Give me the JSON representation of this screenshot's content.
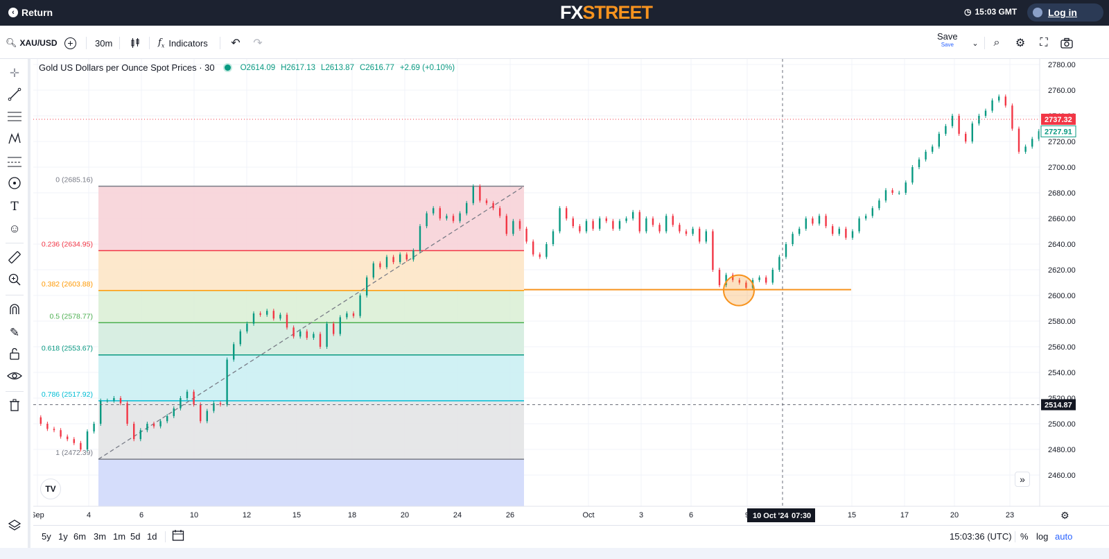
{
  "topbar": {
    "return_label": "Return",
    "brand_fx": "FX",
    "brand_street": "STREET",
    "time": "15:03 GMT",
    "login_label": "Log in"
  },
  "toolbar": {
    "symbol": "XAU/USD",
    "interval": "30m",
    "indicators_label": "Indicators",
    "save_label": "Save",
    "save_sub": "Save"
  },
  "legend": {
    "title": "Gold US Dollars per Ounce Spot Prices · 30",
    "open": "O2614.09",
    "high": "H2617.13",
    "low": "L2613.87",
    "close": "C2616.77",
    "change": "+2.69 (+0.10%)"
  },
  "chart_data": {
    "type": "line",
    "title": "Gold US Dollars per Ounce Spot Prices · 30",
    "y_ticks": [
      2460,
      2480,
      2500,
      2520,
      2540,
      2560,
      2580,
      2600,
      2620,
      2640,
      2660,
      2680,
      2700,
      2720,
      2740,
      2760,
      2780
    ],
    "ylim": [
      2448,
      2790
    ],
    "x_tick_labels": [
      "Sep",
      "4",
      "6",
      "10",
      "12",
      "15",
      "18",
      "20",
      "24",
      "26",
      "Oct",
      "3",
      "6",
      "9",
      "15",
      "17",
      "20",
      "23"
    ],
    "price_path": [
      [
        0,
        2505
      ],
      [
        4,
        2500
      ],
      [
        8,
        2496
      ],
      [
        12,
        2495
      ],
      [
        16,
        2490
      ],
      [
        20,
        2488
      ],
      [
        24,
        2485
      ],
      [
        28,
        2480
      ],
      [
        32,
        2494
      ],
      [
        36,
        2500
      ],
      [
        40,
        2518
      ],
      [
        44,
        2518
      ],
      [
        48,
        2520
      ],
      [
        52,
        2516
      ],
      [
        56,
        2500
      ],
      [
        60,
        2488
      ],
      [
        64,
        2495
      ],
      [
        68,
        2500
      ],
      [
        72,
        2498
      ],
      [
        76,
        2502
      ],
      [
        80,
        2506
      ],
      [
        84,
        2512
      ],
      [
        88,
        2520
      ],
      [
        92,
        2525
      ],
      [
        96,
        2515
      ],
      [
        100,
        2502
      ],
      [
        104,
        2510
      ],
      [
        108,
        2516
      ],
      [
        112,
        2515
      ],
      [
        116,
        2550
      ],
      [
        120,
        2562
      ],
      [
        124,
        2572
      ],
      [
        128,
        2578
      ],
      [
        132,
        2586
      ],
      [
        136,
        2585
      ],
      [
        140,
        2588
      ],
      [
        144,
        2582
      ],
      [
        148,
        2585
      ],
      [
        152,
        2575
      ],
      [
        156,
        2568
      ],
      [
        160,
        2572
      ],
      [
        164,
        2567
      ],
      [
        168,
        2570
      ],
      [
        172,
        2560
      ],
      [
        176,
        2578
      ],
      [
        180,
        2570
      ],
      [
        184,
        2583
      ],
      [
        188,
        2586
      ],
      [
        192,
        2584
      ],
      [
        196,
        2600
      ],
      [
        200,
        2614
      ],
      [
        204,
        2625
      ],
      [
        208,
        2622
      ],
      [
        212,
        2630
      ],
      [
        216,
        2626
      ],
      [
        220,
        2632
      ],
      [
        224,
        2628
      ],
      [
        228,
        2635
      ],
      [
        232,
        2654
      ],
      [
        236,
        2664
      ],
      [
        240,
        2668
      ],
      [
        244,
        2660
      ],
      [
        248,
        2662
      ],
      [
        252,
        2658
      ],
      [
        256,
        2664
      ],
      [
        260,
        2672
      ],
      [
        264,
        2685
      ],
      [
        268,
        2674
      ],
      [
        272,
        2672
      ],
      [
        276,
        2668
      ],
      [
        280,
        2662
      ],
      [
        284,
        2648
      ],
      [
        288,
        2658
      ],
      [
        292,
        2652
      ],
      [
        296,
        2642
      ],
      [
        300,
        2632
      ],
      [
        304,
        2630
      ],
      [
        308,
        2640
      ],
      [
        312,
        2650
      ],
      [
        316,
        2668
      ],
      [
        320,
        2660
      ],
      [
        324,
        2654
      ],
      [
        328,
        2650
      ],
      [
        332,
        2658
      ],
      [
        336,
        2652
      ],
      [
        340,
        2660
      ],
      [
        344,
        2658
      ],
      [
        348,
        2652
      ],
      [
        352,
        2658
      ],
      [
        356,
        2660
      ],
      [
        360,
        2665
      ],
      [
        364,
        2650
      ],
      [
        368,
        2660
      ],
      [
        372,
        2655
      ],
      [
        376,
        2650
      ],
      [
        380,
        2662
      ],
      [
        384,
        2655
      ],
      [
        388,
        2650
      ],
      [
        392,
        2648
      ],
      [
        396,
        2652
      ],
      [
        400,
        2642
      ],
      [
        404,
        2650
      ],
      [
        408,
        2620
      ],
      [
        412,
        2608
      ],
      [
        416,
        2616
      ],
      [
        420,
        2612
      ],
      [
        424,
        2610
      ],
      [
        428,
        2606
      ],
      [
        432,
        2612
      ],
      [
        436,
        2614
      ],
      [
        440,
        2610
      ],
      [
        444,
        2620
      ],
      [
        448,
        2630
      ],
      [
        452,
        2640
      ],
      [
        456,
        2648
      ],
      [
        460,
        2652
      ],
      [
        464,
        2660
      ],
      [
        468,
        2656
      ],
      [
        472,
        2662
      ],
      [
        476,
        2654
      ],
      [
        480,
        2648
      ],
      [
        484,
        2652
      ],
      [
        488,
        2645
      ],
      [
        492,
        2650
      ],
      [
        496,
        2660
      ],
      [
        500,
        2662
      ],
      [
        504,
        2668
      ],
      [
        508,
        2674
      ],
      [
        512,
        2682
      ],
      [
        516,
        2680
      ],
      [
        520,
        2680
      ],
      [
        524,
        2688
      ],
      [
        528,
        2700
      ],
      [
        532,
        2706
      ],
      [
        536,
        2712
      ],
      [
        540,
        2716
      ],
      [
        544,
        2726
      ],
      [
        548,
        2732
      ],
      [
        552,
        2740
      ],
      [
        556,
        2726
      ],
      [
        560,
        2720
      ],
      [
        564,
        2734
      ],
      [
        568,
        2740
      ],
      [
        572,
        2744
      ],
      [
        576,
        2752
      ],
      [
        580,
        2755
      ],
      [
        584,
        2748
      ],
      [
        588,
        2730
      ],
      [
        592,
        2712
      ],
      [
        596,
        2716
      ],
      [
        600,
        2722
      ],
      [
        604,
        2728
      ]
    ],
    "fib_levels": [
      {
        "label": "0 (2685.16)",
        "value": 2685.16,
        "color": "#787b86"
      },
      {
        "label": "0.236 (2634.95)",
        "value": 2634.95,
        "color": "#f23645"
      },
      {
        "label": "0.382 (2603.88)",
        "value": 2603.88,
        "color": "#ff9800"
      },
      {
        "label": "0.5 (2578.77)",
        "value": 2578.77,
        "color": "#4caf50"
      },
      {
        "label": "0.618 (2553.67)",
        "value": 2553.67,
        "color": "#089981"
      },
      {
        "label": "0.786 (2517.92)",
        "value": 2517.92,
        "color": "#00bcd4"
      },
      {
        "label": "1 (2472.39)",
        "value": 2472.39,
        "color": "#787b86"
      }
    ],
    "fib_band_colors": [
      "#f7d3d8",
      "#fde6c7",
      "#dcefd6",
      "#d4ecdf",
      "#cbeff3",
      "#e3e4e6",
      "#d5ddfb"
    ],
    "support_line_value": 2604.5,
    "price_tags": [
      {
        "label": "2737.32",
        "value": 2737.32,
        "bg": "#f23645",
        "fg": "#ffffff"
      },
      {
        "label": "2727.91",
        "value": 2727.91,
        "bg": "#ffffff",
        "fg": "#089981"
      },
      {
        "label": "2514.87",
        "value": 2514.87,
        "bg": "#131722",
        "fg": "#ffffff"
      }
    ],
    "crosshair_date_label": "10 Oct '24",
    "crosshair_time_label": "07:30"
  },
  "bottombar": {
    "ranges": [
      "5y",
      "1y",
      "6m",
      "3m",
      "1m",
      "5d",
      "1d"
    ],
    "utc_time": "15:03:36 (UTC)",
    "percent_label": "%",
    "log_label": "log",
    "auto_label": "auto"
  },
  "colors": {
    "up": "#089981",
    "down": "#f23645",
    "accent": "#2962ff",
    "brand_orange": "#f7931e"
  }
}
